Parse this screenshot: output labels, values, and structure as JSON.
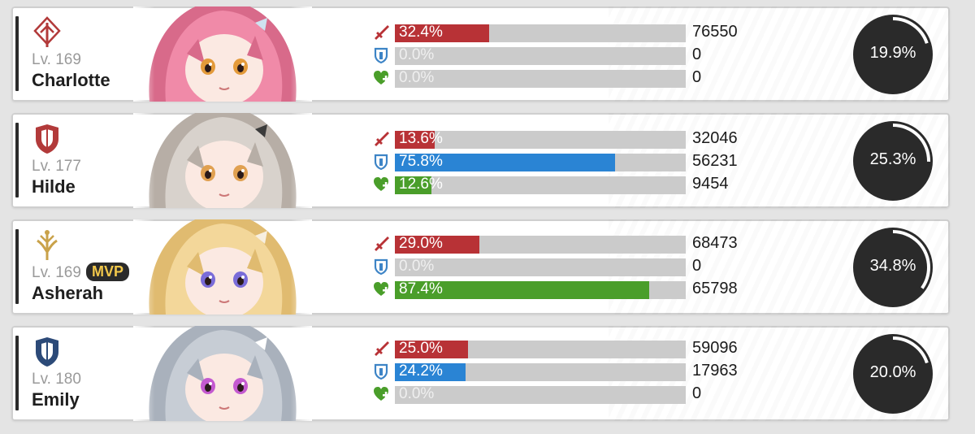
{
  "players": [
    {
      "name": "Charlotte",
      "level": "Lv. 169",
      "class_icon": "attacker-class-icon",
      "mvp": "",
      "share": 19.9,
      "share_label": "19.9%",
      "stats": [
        {
          "kind": "damage",
          "icon": "sword-icon",
          "pct": 32.4,
          "pct_label": "32.4%",
          "value": "76550"
        },
        {
          "kind": "tank",
          "icon": "shield-icon",
          "pct": 0.0,
          "pct_label": "0.0%",
          "value": "0"
        },
        {
          "kind": "heal",
          "icon": "heal-heart-icon",
          "pct": 0.0,
          "pct_label": "0.0%",
          "value": "0"
        }
      ]
    },
    {
      "name": "Hilde",
      "level": "Lv. 177",
      "class_icon": "defender-class-icon",
      "mvp": "",
      "share": 25.3,
      "share_label": "25.3%",
      "stats": [
        {
          "kind": "damage",
          "icon": "sword-icon",
          "pct": 13.6,
          "pct_label": "13.6%",
          "value": "32046"
        },
        {
          "kind": "tank",
          "icon": "shield-icon",
          "pct": 75.8,
          "pct_label": "75.8%",
          "value": "56231"
        },
        {
          "kind": "heal",
          "icon": "heal-heart-icon",
          "pct": 12.6,
          "pct_label": "12.6%",
          "value": "9454"
        }
      ]
    },
    {
      "name": "Asherah",
      "level": "Lv. 169",
      "class_icon": "supporter-class-icon",
      "mvp": "MVP",
      "share": 34.8,
      "share_label": "34.8%",
      "stats": [
        {
          "kind": "damage",
          "icon": "sword-icon",
          "pct": 29.0,
          "pct_label": "29.0%",
          "value": "68473"
        },
        {
          "kind": "tank",
          "icon": "shield-icon",
          "pct": 0.0,
          "pct_label": "0.0%",
          "value": "0"
        },
        {
          "kind": "heal",
          "icon": "heal-heart-icon",
          "pct": 87.4,
          "pct_label": "87.4%",
          "value": "65798"
        }
      ]
    },
    {
      "name": "Emily",
      "level": "Lv. 180",
      "class_icon": "defender-class-icon",
      "mvp": "",
      "share": 20.0,
      "share_label": "20.0%",
      "stats": [
        {
          "kind": "damage",
          "icon": "sword-icon",
          "pct": 25.0,
          "pct_label": "25.0%",
          "value": "59096"
        },
        {
          "kind": "tank",
          "icon": "shield-icon",
          "pct": 24.2,
          "pct_label": "24.2%",
          "value": "17963"
        },
        {
          "kind": "heal",
          "icon": "heal-heart-icon",
          "pct": 0.0,
          "pct_label": "0.0%",
          "value": "0"
        }
      ]
    }
  ],
  "colors": {
    "damage": "#b83236",
    "tank": "#2a84d4",
    "heal": "#4a9e2a",
    "track": "#cbcbcb",
    "ring_bg": "#2a2a2a",
    "ring_fg": "#ffffff",
    "mvp_text": "#f2c84b",
    "icon_red": "#b23a3a",
    "icon_navy": "#2c4a78",
    "icon_gold": "#c9a24a",
    "tank_icon": "#3d84c6",
    "heal_icon": "#4a9e2a"
  },
  "portraits": [
    {
      "hair": "#f08aa8",
      "hair_shade": "#d86a8a",
      "eye": "#e39a3a",
      "accent": "#cfe2f0"
    },
    {
      "hair": "#d8d2cc",
      "hair_shade": "#b7aea6",
      "eye": "#e0a050",
      "accent": "#3b3b3b"
    },
    {
      "hair": "#f3d79a",
      "hair_shade": "#e0bb70",
      "eye": "#7a6cd8",
      "accent": "#f7efe0"
    },
    {
      "hair": "#c7cdd5",
      "hair_shade": "#a9b1bc",
      "eye": "#c45ad0",
      "accent": "#ffffff"
    }
  ]
}
